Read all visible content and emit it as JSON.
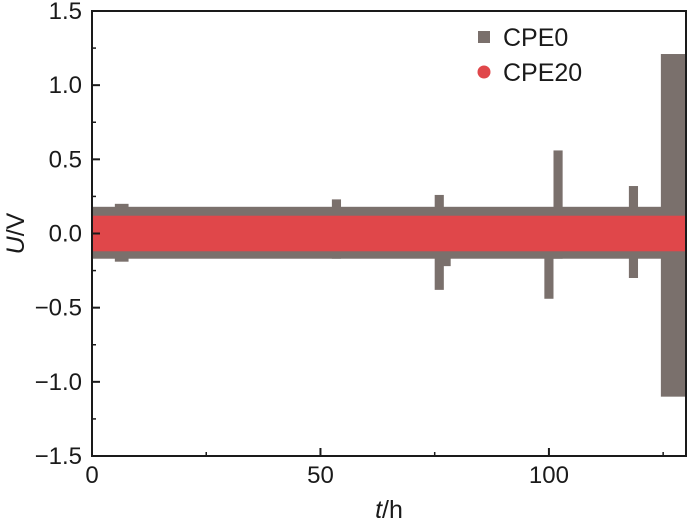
{
  "chart_data": {
    "type": "line",
    "xlabel_var": "t",
    "xlabel_unit": "/h",
    "ylabel_var": "U",
    "ylabel_unit": "/V",
    "xlim": [
      0,
      130
    ],
    "ylim": [
      -1.5,
      1.5
    ],
    "xticks": [
      0,
      50,
      100
    ],
    "xtick_labels": [
      "0",
      "50",
      "100"
    ],
    "yticks": [
      1.5,
      1.0,
      0.5,
      0.0,
      -0.5,
      -1.0,
      -1.5
    ],
    "ytick_labels": [
      "1.5",
      "1.0",
      "0.5",
      "0.0",
      "−0.5",
      "−1.0",
      "−1.5"
    ],
    "legend_placement": "top-right",
    "grid": false,
    "series": [
      {
        "name": "CPE0",
        "marker": "square",
        "color": "#7a706c",
        "band_x": [
          0,
          126
        ],
        "band_upper": 0.18,
        "band_lower": -0.17,
        "spikes": [
          {
            "t": 6.5,
            "width": 3,
            "max": 0.2,
            "min": -0.19
          },
          {
            "t": 53.5,
            "width": 2,
            "max": 0.23,
            "min": -0.17
          },
          {
            "t": 76,
            "width": 2,
            "max": 0.26,
            "min": -0.38
          },
          {
            "t": 77.5,
            "width": 2,
            "max": 0.17,
            "min": -0.22
          },
          {
            "t": 100,
            "width": 2,
            "max": 0.17,
            "min": -0.44
          },
          {
            "t": 102,
            "width": 2,
            "max": 0.56,
            "min": -0.17
          },
          {
            "t": 118.5,
            "width": 2,
            "max": 0.32,
            "min": -0.3
          }
        ],
        "final_segment": {
          "t_start": 124.5,
          "t_end": 130,
          "max": 1.21,
          "min": -1.1
        }
      },
      {
        "name": "CPE20",
        "marker": "circle",
        "color": "#e0474a",
        "band_x": [
          0,
          130
        ],
        "band_upper": 0.12,
        "band_lower": -0.12
      }
    ]
  }
}
